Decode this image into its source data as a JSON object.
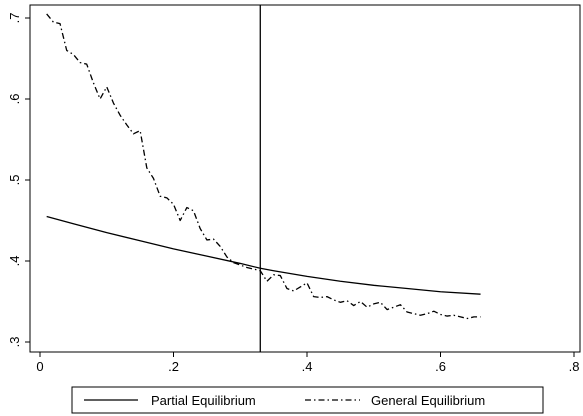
{
  "chart_data": {
    "type": "line",
    "title": "",
    "xlabel": "",
    "ylabel": "",
    "xlim": [
      0,
      0.8
    ],
    "ylim": [
      0.32,
      0.72
    ],
    "x_ticks": [
      0,
      0.2,
      0.4,
      0.6,
      0.8
    ],
    "x_tick_labels": [
      "0",
      ".2",
      ".4",
      ".6",
      ".8"
    ],
    "y_ticks": [
      0.3,
      0.4,
      0.5,
      0.6,
      0.7
    ],
    "y_tick_labels": [
      ".3",
      ".4",
      ".5",
      ".6",
      ".7"
    ],
    "grid": false,
    "legend_position": "bottom",
    "vertical_line_x": 0.33,
    "series": [
      {
        "name": "Partial Equilibrium",
        "style": "solid",
        "color": "#000000",
        "x": [
          0.01,
          0.05,
          0.1,
          0.15,
          0.2,
          0.25,
          0.3,
          0.33,
          0.35,
          0.4,
          0.45,
          0.5,
          0.55,
          0.6,
          0.66
        ],
        "y": [
          0.455,
          0.446,
          0.435,
          0.425,
          0.415,
          0.406,
          0.397,
          0.391,
          0.388,
          0.381,
          0.375,
          0.37,
          0.366,
          0.362,
          0.359
        ]
      },
      {
        "name": "General Equilibrium",
        "style": "dashdot",
        "color": "#000000",
        "x": [
          0.01,
          0.02,
          0.03,
          0.04,
          0.05,
          0.06,
          0.07,
          0.08,
          0.09,
          0.1,
          0.11,
          0.12,
          0.13,
          0.14,
          0.15,
          0.16,
          0.17,
          0.18,
          0.19,
          0.2,
          0.21,
          0.22,
          0.23,
          0.24,
          0.25,
          0.26,
          0.27,
          0.28,
          0.29,
          0.3,
          0.31,
          0.32,
          0.33,
          0.34,
          0.35,
          0.36,
          0.37,
          0.38,
          0.39,
          0.4,
          0.41,
          0.42,
          0.43,
          0.44,
          0.45,
          0.46,
          0.47,
          0.48,
          0.49,
          0.5,
          0.51,
          0.52,
          0.53,
          0.54,
          0.55,
          0.56,
          0.57,
          0.58,
          0.59,
          0.6,
          0.61,
          0.62,
          0.63,
          0.64,
          0.65,
          0.66
        ],
        "y": [
          0.705,
          0.695,
          0.693,
          0.66,
          0.655,
          0.645,
          0.643,
          0.62,
          0.6,
          0.615,
          0.595,
          0.58,
          0.568,
          0.557,
          0.561,
          0.515,
          0.502,
          0.48,
          0.478,
          0.47,
          0.45,
          0.466,
          0.462,
          0.44,
          0.426,
          0.427,
          0.418,
          0.405,
          0.398,
          0.395,
          0.392,
          0.39,
          0.388,
          0.375,
          0.383,
          0.382,
          0.366,
          0.363,
          0.368,
          0.373,
          0.356,
          0.355,
          0.356,
          0.352,
          0.349,
          0.351,
          0.345,
          0.35,
          0.343,
          0.347,
          0.349,
          0.34,
          0.343,
          0.346,
          0.337,
          0.335,
          0.333,
          0.335,
          0.338,
          0.334,
          0.332,
          0.333,
          0.331,
          0.329,
          0.331,
          0.331
        ]
      }
    ]
  }
}
